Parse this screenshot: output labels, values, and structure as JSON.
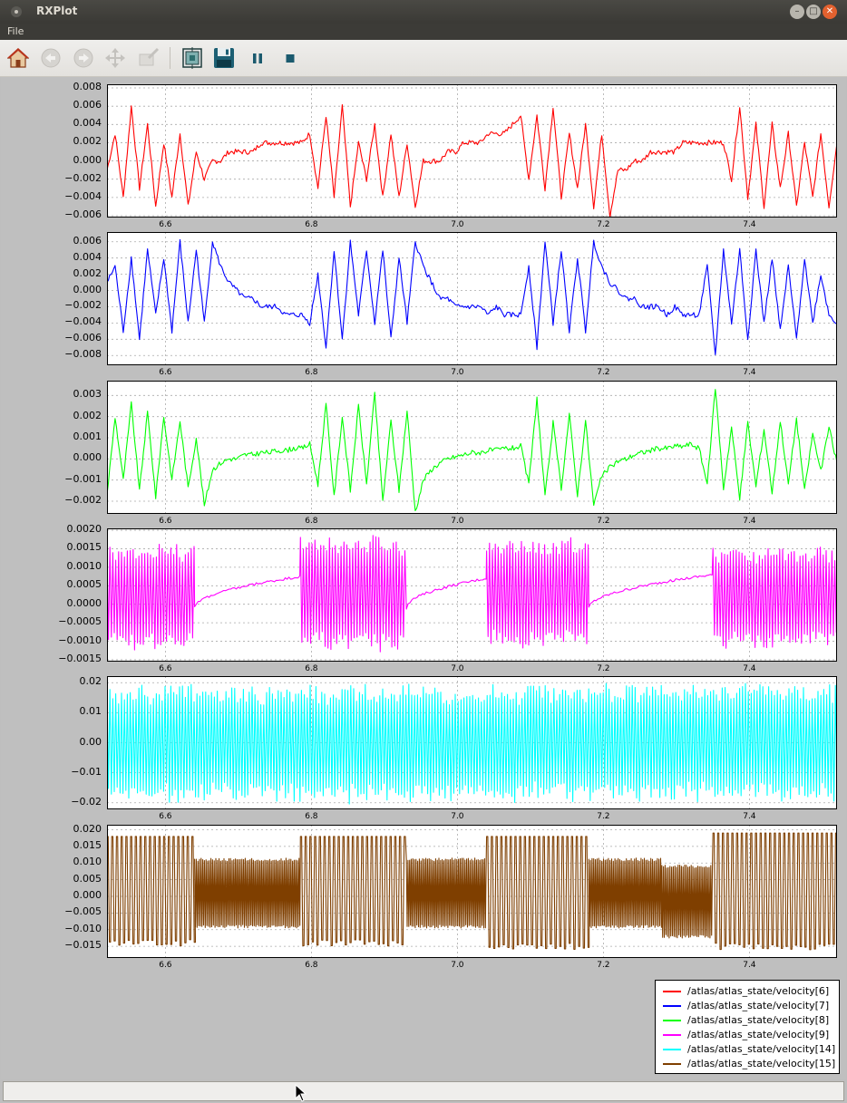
{
  "window": {
    "title": "RXPlot"
  },
  "menu": {
    "items": [
      "File"
    ]
  },
  "toolbar": {
    "buttons": [
      {
        "name": "home",
        "icon": "home-icon",
        "enabled": true
      },
      {
        "name": "back",
        "icon": "back-arrow-icon",
        "enabled": false
      },
      {
        "name": "forward",
        "icon": "forward-arrow-icon",
        "enabled": false
      },
      {
        "name": "pan",
        "icon": "pan-arrows-icon",
        "enabled": false
      },
      {
        "name": "zoom",
        "icon": "zoom-rect-icon",
        "enabled": false
      },
      {
        "name": "configure-subplots",
        "icon": "subplots-icon",
        "enabled": true
      },
      {
        "name": "save",
        "icon": "floppy-disk-icon",
        "enabled": true
      },
      {
        "name": "pause",
        "icon": "pause-icon",
        "enabled": true
      },
      {
        "name": "stop",
        "icon": "stop-icon",
        "enabled": true
      }
    ]
  },
  "chart_data": [
    {
      "type": "line",
      "series": [
        {
          "name": "/atlas/atlas_state/velocity[6]",
          "color": "#ff0000"
        }
      ],
      "xlim": [
        6.52,
        7.52
      ],
      "x_ticks": [
        "6.6",
        "6.8",
        "7.0",
        "7.2",
        "7.4"
      ],
      "y_ticks": [
        "0.008",
        "0.006",
        "0.004",
        "0.002",
        "0.000",
        "−0.002",
        "−0.004",
        "−0.006"
      ],
      "ylim": [
        -0.0062,
        0.0084
      ],
      "grid": true,
      "y_values": [
        -0.001,
        0.003,
        -0.004,
        0.006,
        -0.003,
        0.004,
        -0.005,
        0.002,
        -0.004,
        0.003,
        -0.005,
        0.001,
        -0.002,
        0.0,
        0.0,
        0.001,
        0.001,
        0.001,
        0.001,
        0.002,
        0.002,
        0.002,
        0.002,
        0.002,
        0.002,
        0.003,
        -0.003,
        0.005,
        -0.004,
        0.006,
        -0.005,
        0.002,
        -0.002,
        0.004,
        -0.004,
        0.003,
        -0.004,
        0.002,
        -0.005,
        0.0,
        0.0,
        0.0,
        0.001,
        0.001,
        0.002,
        0.002,
        0.002,
        0.003,
        0.003,
        0.003,
        0.004,
        0.005,
        -0.002,
        0.005,
        -0.003,
        0.006,
        -0.004,
        0.003,
        -0.003,
        0.004,
        -0.005,
        0.003,
        -0.006,
        -0.001,
        -0.001,
        0.0,
        0.0,
        0.001,
        0.001,
        0.001,
        0.001,
        0.002,
        0.002,
        0.002,
        0.002,
        0.002,
        0.002,
        -0.002,
        0.006,
        -0.004,
        0.004,
        -0.005,
        0.004,
        -0.003,
        0.003,
        -0.005,
        0.002,
        -0.004,
        0.003,
        -0.005,
        0.002
      ]
    },
    {
      "type": "line",
      "series": [
        {
          "name": "/atlas/atlas_state/velocity[7]",
          "color": "#0000ff"
        }
      ],
      "xlim": [
        6.52,
        7.52
      ],
      "x_ticks": [
        "6.6",
        "6.8",
        "7.0",
        "7.2",
        "7.4"
      ],
      "y_ticks": [
        "0.006",
        "0.004",
        "0.002",
        "0.000",
        "−0.002",
        "−0.004",
        "−0.006",
        "−0.008"
      ],
      "ylim": [
        -0.0092,
        0.0072
      ],
      "grid": true,
      "y_values": [
        0.001,
        0.003,
        -0.005,
        0.004,
        -0.006,
        0.005,
        -0.003,
        0.004,
        -0.005,
        0.006,
        -0.004,
        0.005,
        -0.004,
        0.006,
        0.003,
        0.001,
        0.0,
        -0.001,
        -0.001,
        -0.002,
        -0.002,
        -0.002,
        -0.003,
        -0.003,
        -0.003,
        -0.004,
        0.002,
        -0.007,
        0.005,
        -0.006,
        0.006,
        -0.003,
        0.005,
        -0.004,
        0.005,
        -0.006,
        0.004,
        -0.004,
        0.006,
        0.003,
        0.001,
        -0.001,
        -0.001,
        -0.002,
        -0.002,
        -0.002,
        -0.002,
        -0.003,
        -0.002,
        -0.003,
        -0.003,
        -0.003,
        0.003,
        -0.007,
        0.006,
        -0.004,
        0.005,
        -0.005,
        0.004,
        -0.005,
        0.006,
        0.003,
        0.001,
        0.0,
        -0.001,
        -0.001,
        -0.002,
        -0.002,
        -0.002,
        -0.003,
        -0.002,
        -0.003,
        -0.003,
        -0.003,
        0.003,
        -0.008,
        0.005,
        -0.004,
        0.005,
        -0.006,
        0.005,
        -0.004,
        0.004,
        -0.005,
        0.003,
        -0.006,
        0.004,
        -0.004,
        0.002,
        -0.003,
        -0.004
      ]
    },
    {
      "type": "line",
      "series": [
        {
          "name": "/atlas/atlas_state/velocity[8]",
          "color": "#00ff00"
        }
      ],
      "xlim": [
        6.52,
        7.52
      ],
      "x_ticks": [
        "6.6",
        "6.8",
        "7.0",
        "7.2",
        "7.4"
      ],
      "y_ticks": [
        "0.003",
        "0.002",
        "0.001",
        "0.000",
        "−0.001",
        "−0.002"
      ],
      "ylim": [
        -0.0026,
        0.0037
      ],
      "grid": true,
      "y_values": [
        -0.0017,
        0.002,
        -0.001,
        0.0026,
        -0.0015,
        0.0022,
        -0.0018,
        0.002,
        -0.001,
        0.0018,
        -0.0014,
        0.001,
        -0.0022,
        -0.0005,
        -0.0002,
        0.0,
        0.0,
        0.0002,
        0.0002,
        0.0003,
        0.0003,
        0.0004,
        0.0004,
        0.0005,
        0.0005,
        0.0007,
        -0.0012,
        0.0026,
        -0.0018,
        0.002,
        -0.0015,
        0.0025,
        -0.0012,
        0.0031,
        -0.002,
        0.0018,
        -0.0015,
        0.0023,
        -0.0025,
        -0.001,
        -0.0005,
        -0.0002,
        0.0,
        0.0001,
        0.0002,
        0.0003,
        0.0003,
        0.0004,
        0.0004,
        0.0005,
        0.0005,
        0.0006,
        -0.0012,
        0.0029,
        -0.0018,
        0.0017,
        -0.0014,
        0.0021,
        -0.0017,
        0.0018,
        -0.0022,
        -0.0008,
        -0.0004,
        -0.0001,
        0.0,
        0.0002,
        0.0003,
        0.0004,
        0.0005,
        0.0005,
        0.0006,
        0.0006,
        0.0007,
        0.0005,
        -0.0012,
        0.0034,
        -0.0014,
        0.0015,
        -0.0019,
        0.0017,
        -0.0013,
        0.0014,
        -0.0016,
        0.0018,
        -0.0012,
        0.0019,
        -0.0015,
        0.0012,
        -0.0006,
        0.0015,
        -0.0002
      ]
    },
    {
      "type": "line",
      "series": [
        {
          "name": "/atlas/atlas_state/velocity[9]",
          "color": "#ff00ff"
        }
      ],
      "xlim": [
        6.52,
        7.52
      ],
      "x_ticks": [
        "6.6",
        "6.8",
        "7.0",
        "7.2",
        "7.4"
      ],
      "y_ticks": [
        "0.0020",
        "0.0015",
        "0.0010",
        "0.0005",
        "0.0000",
        "−0.0005",
        "−0.0010",
        "−0.0015"
      ],
      "ylim": [
        -0.00155,
        0.00205
      ],
      "grid": true,
      "segments": [
        {
          "kind": "osc",
          "x": [
            6.52,
            6.64
          ],
          "amp": 0.00145,
          "center": 0.0002
        },
        {
          "kind": "ramp",
          "x": [
            6.64,
            6.785
          ],
          "y": [
            -0.0001,
            0.00075
          ]
        },
        {
          "kind": "osc",
          "x": [
            6.785,
            6.93
          ],
          "amp": 0.00155,
          "center": 0.0003
        },
        {
          "kind": "ramp",
          "x": [
            6.93,
            7.04
          ],
          "y": [
            -0.0001,
            0.0007
          ]
        },
        {
          "kind": "osc",
          "x": [
            7.04,
            7.18
          ],
          "amp": 0.0015,
          "center": 0.0003
        },
        {
          "kind": "ramp",
          "x": [
            7.18,
            7.35
          ],
          "y": [
            -0.0001,
            0.0008
          ]
        },
        {
          "kind": "osc",
          "x": [
            7.35,
            7.52
          ],
          "amp": 0.00135,
          "center": 0.0002
        }
      ]
    },
    {
      "type": "line",
      "series": [
        {
          "name": "/atlas/atlas_state/velocity[14]",
          "color": "#00ffff"
        }
      ],
      "xlim": [
        6.52,
        7.52
      ],
      "x_ticks": [
        "6.6",
        "6.8",
        "7.0",
        "7.2",
        "7.4"
      ],
      "y_ticks": [
        "0.02",
        "0.01",
        "0.00",
        "−0.01",
        "−0.02"
      ],
      "ylim": [
        -0.0222,
        0.0222
      ],
      "grid": true,
      "segments": [
        {
          "kind": "osc",
          "x": [
            6.52,
            7.52
          ],
          "amp": 0.0195,
          "center": -0.0002
        }
      ]
    },
    {
      "type": "line",
      "series": [
        {
          "name": "/atlas/atlas_state/velocity[15]",
          "color": "#7f3f00"
        }
      ],
      "xlim": [
        6.52,
        7.52
      ],
      "x_ticks": [
        "6.6",
        "6.8",
        "7.0",
        "7.2",
        "7.4"
      ],
      "y_ticks": [
        "0.020",
        "0.015",
        "0.010",
        "0.005",
        "0.000",
        "−0.005",
        "−0.010",
        "−0.015"
      ],
      "ylim": [
        -0.0185,
        0.0215
      ],
      "grid": true,
      "segments": [
        {
          "kind": "band",
          "x": [
            6.52,
            6.64
          ],
          "y": [
            -0.015,
            0.018
          ]
        },
        {
          "kind": "dense",
          "x": [
            6.64,
            6.785
          ],
          "y": [
            -0.0095,
            0.0115
          ]
        },
        {
          "kind": "band",
          "x": [
            6.785,
            6.93
          ],
          "y": [
            -0.015,
            0.018
          ]
        },
        {
          "kind": "dense",
          "x": [
            6.93,
            7.04
          ],
          "y": [
            -0.0095,
            0.0115
          ]
        },
        {
          "kind": "band",
          "x": [
            7.04,
            7.18
          ],
          "y": [
            -0.016,
            0.018
          ]
        },
        {
          "kind": "dense",
          "x": [
            7.18,
            7.28
          ],
          "y": [
            -0.0095,
            0.0115
          ]
        },
        {
          "kind": "dense",
          "x": [
            7.28,
            7.35
          ],
          "y": [
            -0.0125,
            0.0095
          ]
        },
        {
          "kind": "band",
          "x": [
            7.35,
            7.52
          ],
          "y": [
            -0.016,
            0.019
          ]
        }
      ]
    }
  ],
  "legend": {
    "placement": "lower-right",
    "entries": [
      {
        "label": "/atlas/atlas_state/velocity[6]",
        "color": "#ff0000"
      },
      {
        "label": "/atlas/atlas_state/velocity[7]",
        "color": "#0000ff"
      },
      {
        "label": "/atlas/atlas_state/velocity[8]",
        "color": "#00ff00"
      },
      {
        "label": "/atlas/atlas_state/velocity[9]",
        "color": "#ff00ff"
      },
      {
        "label": "/atlas/atlas_state/velocity[14]",
        "color": "#00ffff"
      },
      {
        "label": "/atlas/atlas_state/velocity[15]",
        "color": "#7f3f00"
      }
    ]
  },
  "statusbar": {
    "text": ""
  }
}
